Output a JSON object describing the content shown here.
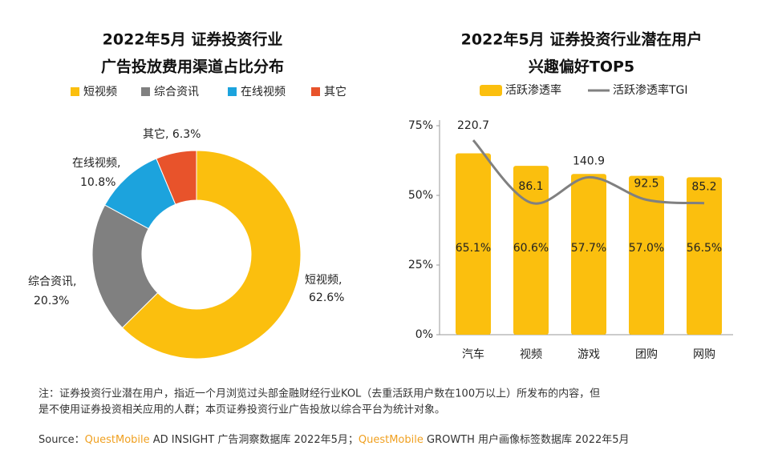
{
  "chart_data": [
    {
      "type": "donut",
      "title": [
        "2022年5月 证券投资行业",
        "广告投放费用渠道占比分布"
      ],
      "categories": [
        "短视频",
        "综合资讯",
        "在线视频",
        "其它"
      ],
      "values": [
        62.6,
        20.3,
        10.8,
        6.3
      ],
      "value_labels": [
        "短视频, 62.6%",
        "综合资讯, 20.3%",
        "在线视频, 10.8%",
        "其它, 6.3%"
      ],
      "colors": [
        "#fbbf0e",
        "#808080",
        "#1ca3dd",
        "#e8532b"
      ]
    },
    {
      "type": "bar_line",
      "title": [
        "2022年5月 证券投资行业潜在用户",
        "兴趣偏好TOP5"
      ],
      "categories": [
        "汽车",
        "视频",
        "游戏",
        "团购",
        "网购"
      ],
      "series": [
        {
          "name": "活跃渗透率",
          "color": "#fbbf0e",
          "values": [
            65.1,
            60.6,
            57.7,
            57.0,
            56.5
          ],
          "value_labels": [
            "65.1%",
            "60.6%",
            "57.7%",
            "57.0%",
            "56.5%"
          ]
        },
        {
          "name": "活跃渗透率TGI",
          "color": "#808080",
          "axis": "y2",
          "values": [
            220.7,
            86.1,
            140.9,
            92.5,
            85.2
          ]
        }
      ],
      "ylim": [
        0,
        75
      ],
      "yticks": [
        {
          "value": 0,
          "label": "0%"
        },
        {
          "value": 25,
          "label": "25%"
        },
        {
          "value": 50,
          "label": "50%"
        },
        {
          "value": 75,
          "label": "75%"
        }
      ],
      "y2lim": [
        -198,
        252
      ],
      "grid": false
    }
  ],
  "footer": {
    "note": [
      "注：证券投资行业潜在用户，指近一个月浏览过头部金融财经行业KOL（去重活跃用户数在100万以上）所发布的内容，但",
      "是不使用证券投资相关应用的人群；本页证券投资行业广告投放以综合平台为统计对象。"
    ],
    "source": [
      "Source：",
      "QuestMobile",
      " AD INSIGHT 广告洞察数据库 2022年5月；",
      "QuestMobile",
      " GROWTH 用户画像标签数据库 2022年5月"
    ]
  }
}
